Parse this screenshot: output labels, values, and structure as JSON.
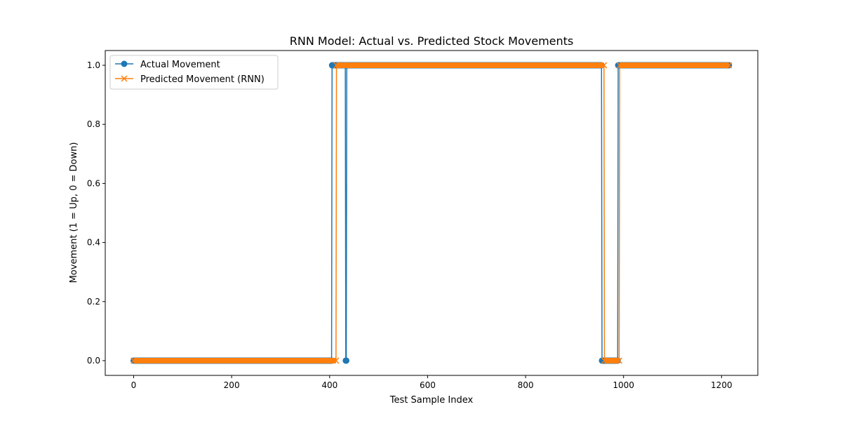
{
  "chart_data": {
    "type": "line",
    "title": "RNN Model: Actual vs. Predicted Stock Movements",
    "xlabel": "Test Sample Index",
    "ylabel": "Movement (1 = Up, 0 = Down)",
    "xlim": [
      -58,
      1274
    ],
    "ylim": [
      -0.05,
      1.05
    ],
    "xticks": [
      0,
      200,
      400,
      600,
      800,
      1000,
      1200
    ],
    "yticks": [
      0.0,
      0.2,
      0.4,
      0.6,
      0.8,
      1.0
    ],
    "xtick_labels": [
      "0",
      "200",
      "400",
      "600",
      "800",
      "1000",
      "1200"
    ],
    "ytick_labels": [
      "0.0",
      "0.2",
      "0.4",
      "0.6",
      "0.8",
      "1.0"
    ],
    "grid": false,
    "legend_position": "upper-left",
    "series": [
      {
        "name": "Actual Movement",
        "color": "#1f77b4",
        "marker": "circle",
        "segments": [
          {
            "start": 0,
            "end": 404,
            "value": 0
          },
          {
            "start": 405,
            "end": 432,
            "value": 1
          },
          {
            "start": 433,
            "end": 434,
            "value": 0
          },
          {
            "start": 435,
            "end": 955,
            "value": 1
          },
          {
            "start": 956,
            "end": 988,
            "value": 0
          },
          {
            "start": 989,
            "end": 1215,
            "value": 1
          }
        ]
      },
      {
        "name": "Predicted Movement (RNN)",
        "color": "#ff7f0e",
        "marker": "x",
        "segments": [
          {
            "start": 0,
            "end": 413,
            "value": 0
          },
          {
            "start": 414,
            "end": 960,
            "value": 1
          },
          {
            "start": 961,
            "end": 991,
            "value": 0
          },
          {
            "start": 992,
            "end": 1215,
            "value": 1
          }
        ]
      }
    ]
  }
}
